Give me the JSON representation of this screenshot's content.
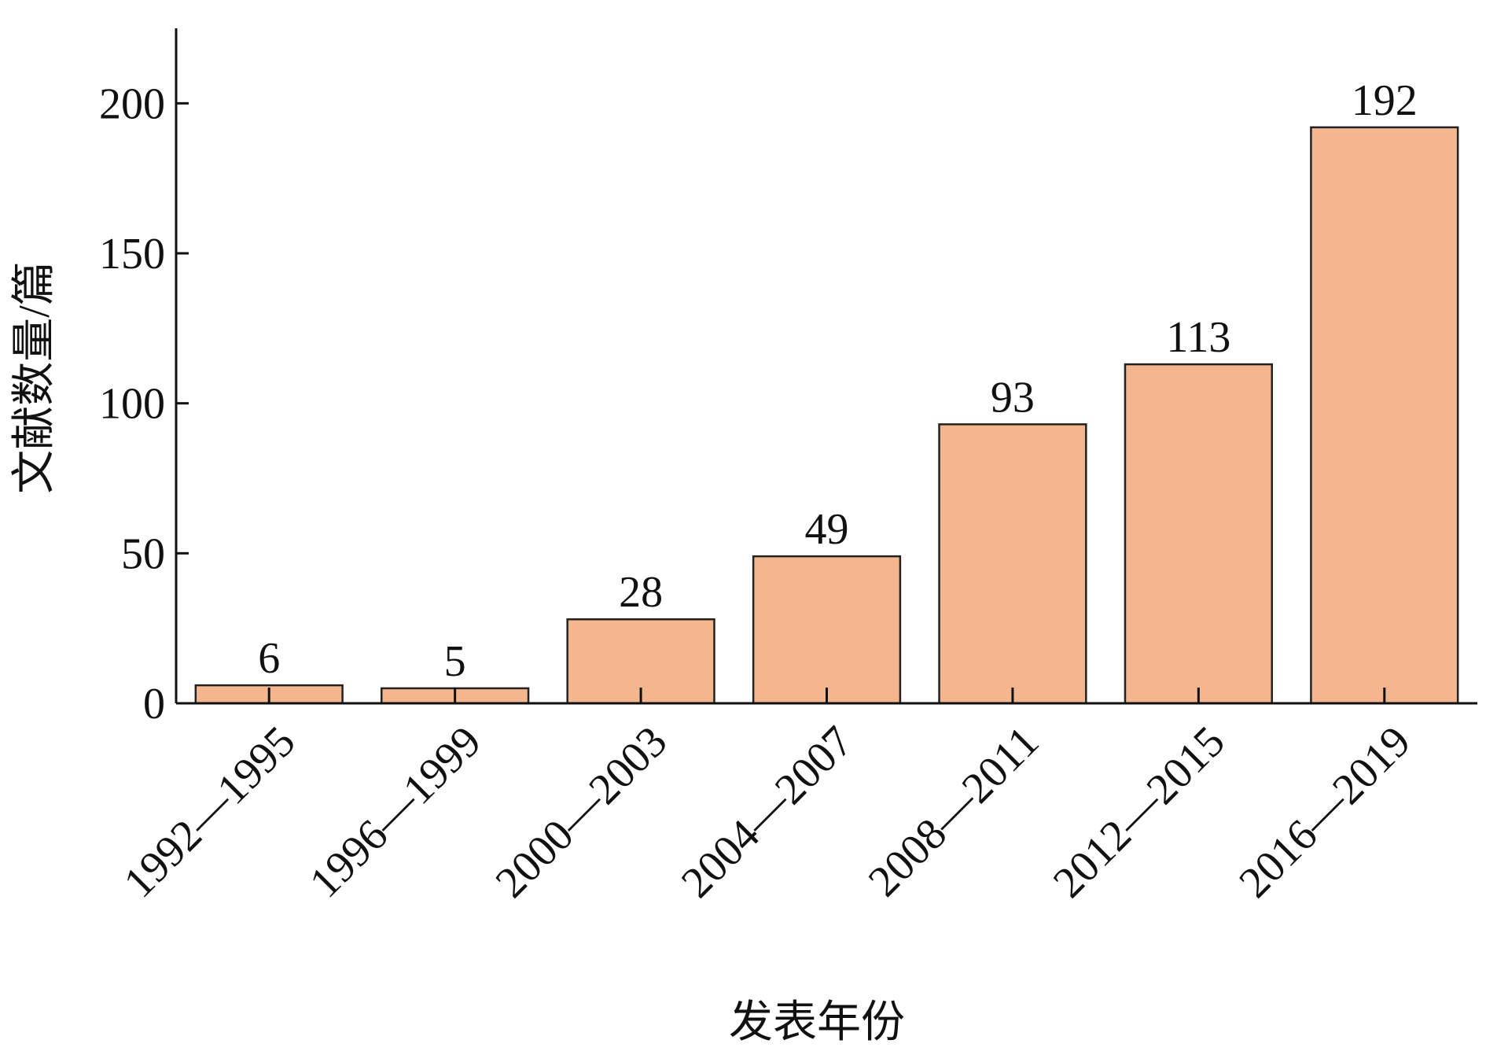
{
  "chart_data": {
    "type": "bar",
    "x_label": "发表年份",
    "y_label": "文献数量/篇",
    "categories": [
      "1992—1995",
      "1996—1999",
      "2000—2003",
      "2004—2007",
      "2008—2011",
      "2012—2015",
      "2016—2019"
    ],
    "values": [
      6,
      5,
      28,
      49,
      93,
      113,
      192
    ],
    "color": "#f4b68e",
    "ylim": [
      0,
      225
    ],
    "yticks": [
      0,
      50,
      100,
      150,
      200
    ],
    "grid": false
  }
}
